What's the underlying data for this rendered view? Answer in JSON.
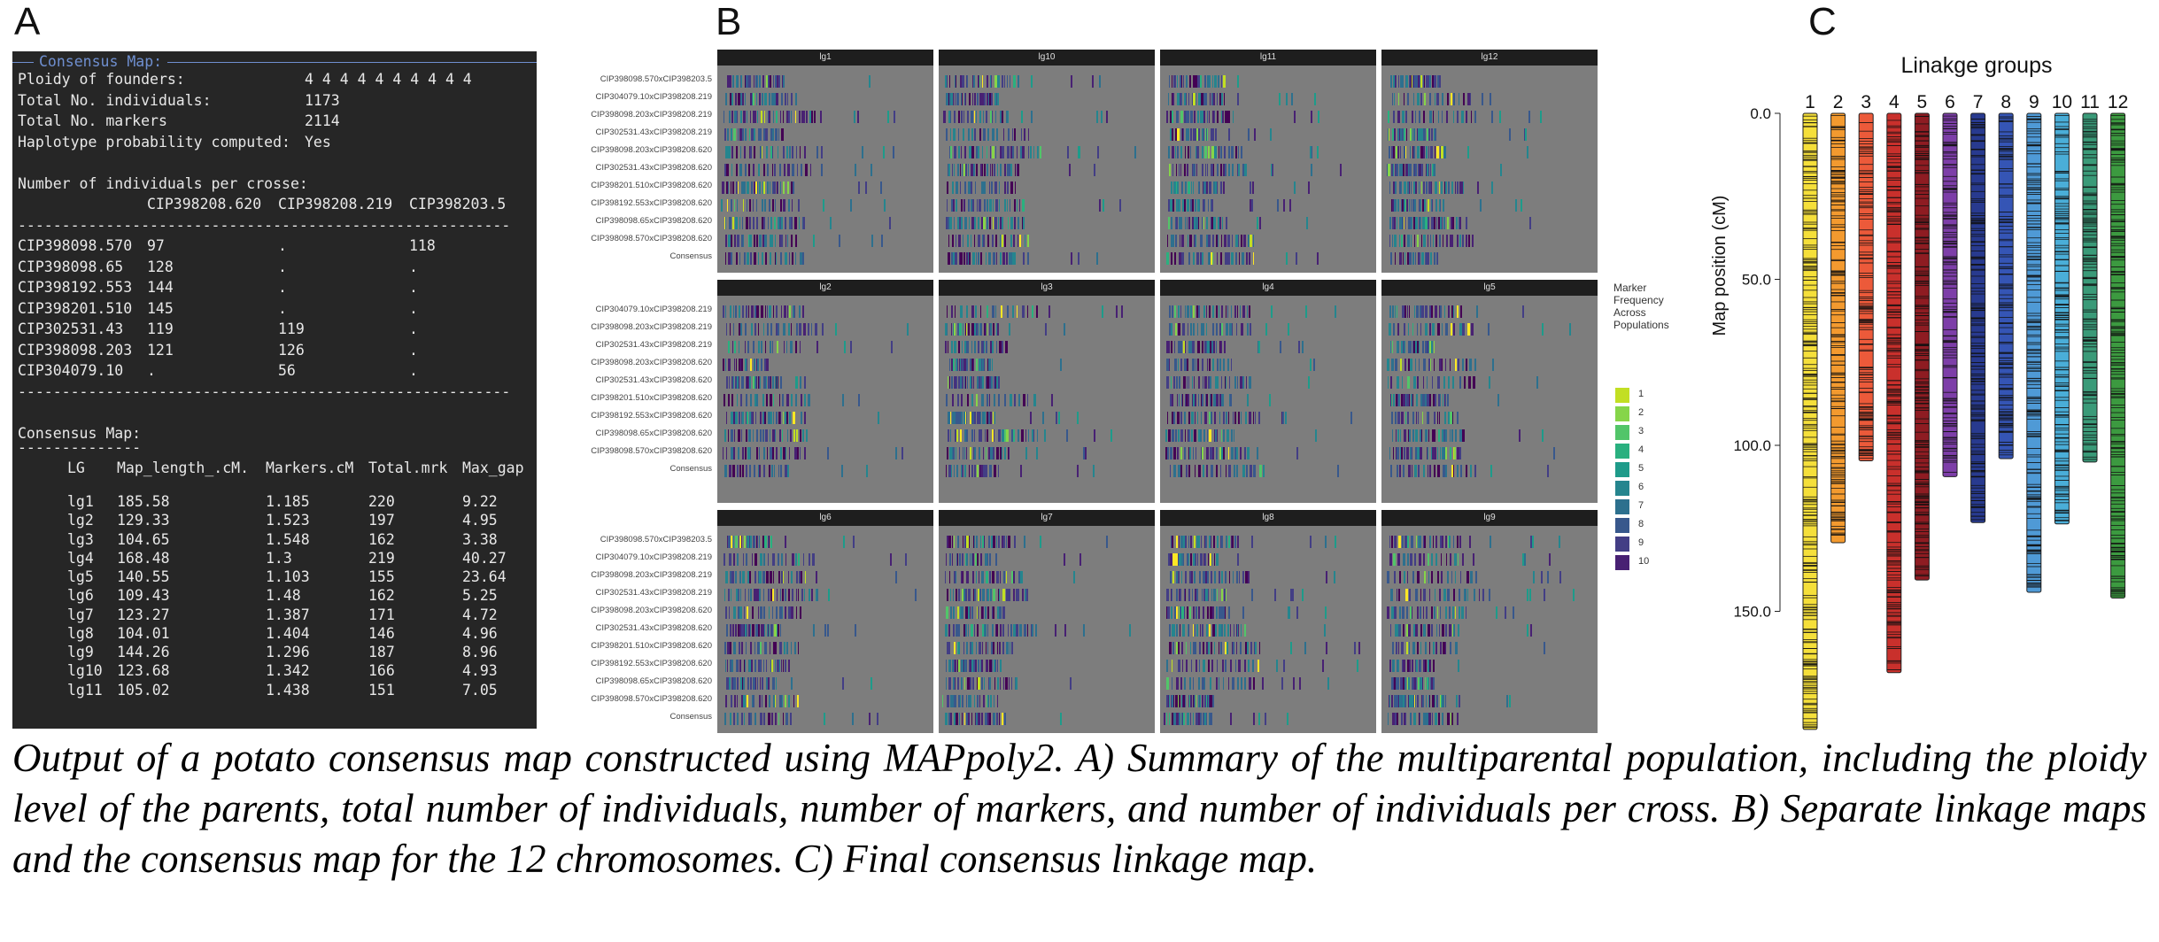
{
  "panels": {
    "a": "A",
    "b": "B",
    "c": "C"
  },
  "summary": {
    "header": "Consensus Map:",
    "lines": [
      {
        "k": "Ploidy of founders:",
        "v": "4 4 4 4 4 4 4 4 4 4"
      },
      {
        "k": "Total No. individuals:",
        "v": "1173"
      },
      {
        "k": "Total No. markers",
        "v": "2114"
      },
      {
        "k": "Haplotype probability computed:",
        "v": "Yes"
      }
    ],
    "cross_title": "Number of individuals per crosse:",
    "cross_cols": [
      "CIP398208.620",
      "CIP398208.219",
      "CIP398203.5"
    ],
    "cross_rows": [
      {
        "name": "CIP398098.570",
        "c1": "97",
        "c2": ".",
        "c3": "118"
      },
      {
        "name": "CIP398098.65",
        "c1": "128",
        "c2": ".",
        "c3": "."
      },
      {
        "name": "CIP398192.553",
        "c1": "144",
        "c2": ".",
        "c3": "."
      },
      {
        "name": "CIP398201.510",
        "c1": "145",
        "c2": ".",
        "c3": "."
      },
      {
        "name": "CIP302531.43",
        "c1": "119",
        "c2": "119",
        "c3": "."
      },
      {
        "name": "CIP398098.203",
        "c1": "121",
        "c2": "126",
        "c3": "."
      },
      {
        "name": "CIP304079.10",
        "c1": ".",
        "c2": "56",
        "c3": "."
      }
    ],
    "map_title": "Consensus Map:",
    "map_cols": [
      "LG",
      "Map_length_.cM.",
      "Markers.cM",
      "Total.mrk",
      "Max_gap"
    ],
    "map_rows": [
      [
        "lg1",
        "185.58",
        "1.185",
        "220",
        "9.22"
      ],
      [
        "lg2",
        "129.33",
        "1.523",
        "197",
        "4.95"
      ],
      [
        "lg3",
        "104.65",
        "1.548",
        "162",
        "3.38"
      ],
      [
        "lg4",
        "168.48",
        "1.3",
        "219",
        "40.27"
      ],
      [
        "lg5",
        "140.55",
        "1.103",
        "155",
        "23.64"
      ],
      [
        "lg6",
        "109.43",
        "1.48",
        "162",
        "5.25"
      ],
      [
        "lg7",
        "123.27",
        "1.387",
        "171",
        "4.72"
      ],
      [
        "lg8",
        "104.01",
        "1.404",
        "146",
        "4.96"
      ],
      [
        "lg9",
        "144.26",
        "1.296",
        "187",
        "8.96"
      ],
      [
        "lg10",
        "123.68",
        "1.342",
        "166",
        "4.93"
      ],
      [
        "lg11",
        "105.02",
        "1.438",
        "151",
        "7.05"
      ]
    ]
  },
  "facets": {
    "panels": [
      "lg1",
      "lg10",
      "lg11",
      "lg12",
      "lg2",
      "lg3",
      "lg4",
      "lg5",
      "lg6",
      "lg7",
      "lg8",
      "lg9"
    ],
    "rows_full": [
      "CIP398098.570xCIP398203.5",
      "CIP304079.10xCIP398208.219",
      "CIP398098.203xCIP398208.219",
      "CIP302531.43xCIP398208.219",
      "CIP398098.203xCIP398208.620",
      "CIP302531.43xCIP398208.620",
      "CIP398201.510xCIP398208.620",
      "CIP398192.553xCIP398208.620",
      "CIP398098.65xCIP398208.620",
      "CIP398098.570xCIP398208.620",
      "Consensus"
    ],
    "legend_title": "Marker Frequency Across Populations",
    "legend_labels": [
      "1",
      "2",
      "3",
      "4",
      "5",
      "6",
      "7",
      "8",
      "9",
      "10"
    ],
    "legend_colors": [
      "#fde725",
      "#c2df23",
      "#86d549",
      "#52c569",
      "#2ab07f",
      "#1e9b8a",
      "#25858e",
      "#2d708e",
      "#38588c",
      "#433e85",
      "#482173",
      "#440154"
    ]
  },
  "chart_data": {
    "type": "bar",
    "title": "Linakge groups",
    "ylabel": "Map position (cM)",
    "ylim": [
      0,
      189
    ],
    "yticks": [
      "0.0",
      "50.0",
      "100.0",
      "150.0"
    ],
    "categories": [
      "1",
      "2",
      "3",
      "4",
      "5",
      "6",
      "7",
      "8",
      "9",
      "10",
      "11",
      "12"
    ],
    "values": [
      185.58,
      129.33,
      104.65,
      168.48,
      140.55,
      109.43,
      123.27,
      104.01,
      144.26,
      123.68,
      105.02,
      146.0
    ],
    "colors": [
      "#f5df3a",
      "#f39a2f",
      "#ec5a3a",
      "#c9302c",
      "#8e1c22",
      "#7d3ea8",
      "#283a8f",
      "#3555b5",
      "#4f9ad6",
      "#4aaed8",
      "#3a9a78",
      "#3c9a40"
    ]
  },
  "caption": "Output of a potato consensus map constructed using MAPpoly2. A) Summary of the multiparental population, including the ploidy level of the parents, total number of individuals, number of markers, and number of individuals per cross. B) Separate linkage maps and the consensus map for the 12 chromosomes. C) Final consensus linkage map."
}
